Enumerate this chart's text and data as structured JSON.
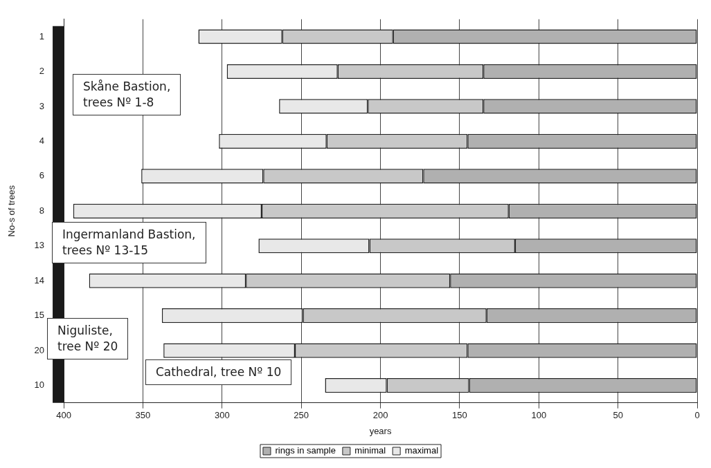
{
  "chart_data": {
    "type": "bar",
    "orientation": "horizontal",
    "stacked": true,
    "categories": [
      "1",
      "2",
      "3",
      "4",
      "6",
      "8",
      "13",
      "14",
      "15",
      "20",
      "10"
    ],
    "series": [
      {
        "name": "rings in sample",
        "color": "#b0b0b0",
        "values": [
          192,
          135,
          135,
          145,
          173,
          119,
          115,
          156,
          133,
          145,
          144
        ]
      },
      {
        "name": "minimal",
        "color": "#c8c8c8",
        "values": [
          70,
          92,
          73,
          89,
          101,
          156,
          92,
          129,
          116,
          109,
          52
        ]
      },
      {
        "name": "maximal",
        "color": "#e8e8e8",
        "values": [
          53,
          70,
          56,
          68,
          77,
          119,
          70,
          99,
          89,
          83,
          39
        ]
      }
    ],
    "xlim": [
      400,
      0
    ],
    "xticks": [
      400,
      350,
      300,
      250,
      200,
      150,
      100,
      50,
      0
    ],
    "xlabel": "years",
    "ylabel": "No-s of trees",
    "grid": "x",
    "legend": "bottom",
    "annotations": [
      "Skåne Bastion, trees Nº 1-8",
      "Ingermanland Bastion, trees Nº 13-15",
      "Niguliste, tree Nº 20",
      "Cathedral, tree Nº 10"
    ]
  }
}
